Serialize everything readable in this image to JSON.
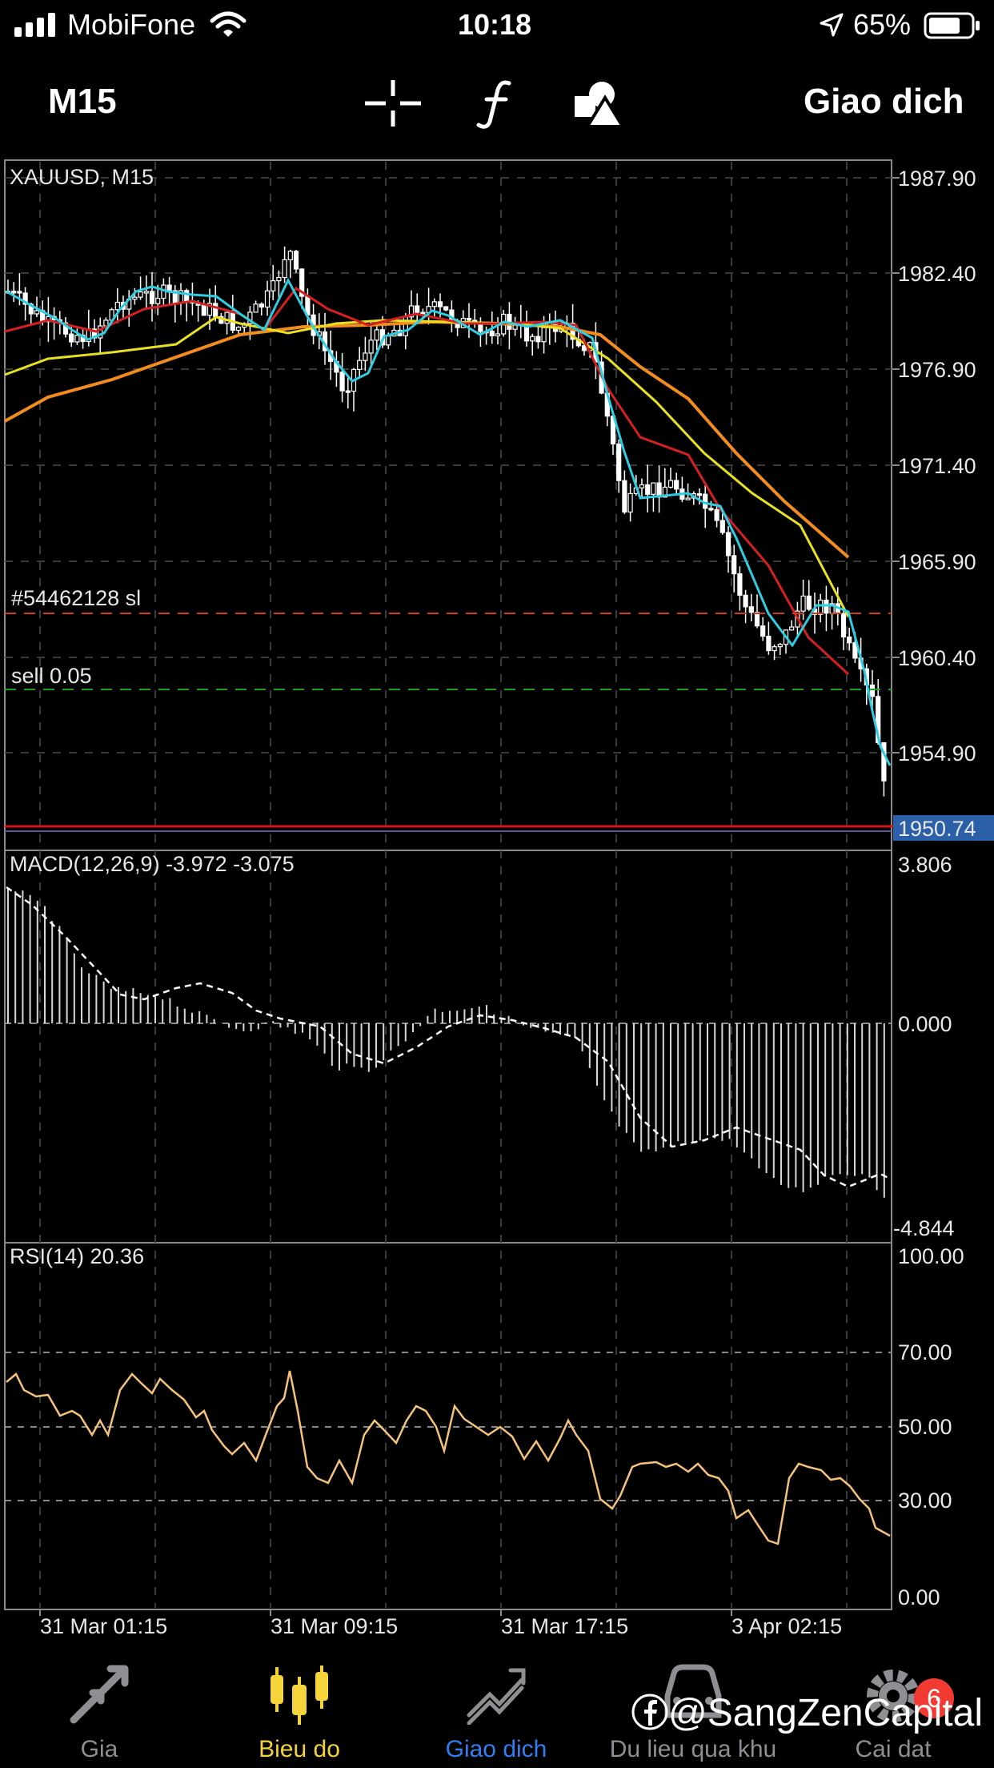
{
  "status_bar": {
    "carrier": "MobiFone",
    "time": "10:18",
    "battery": "65%"
  },
  "toolbar": {
    "timeframe": "M15",
    "trade_label": "Giao dich",
    "icons": [
      "crosshair-icon",
      "function-icon",
      "objects-icon"
    ]
  },
  "main_chart": {
    "symbol_label": "XAUUSD, M15",
    "price_ticks": [
      "1987.90",
      "1982.40",
      "1976.90",
      "1971.40",
      "1965.90",
      "1960.40",
      "1954.90"
    ],
    "current_price": "1950.74",
    "sl_label": "#54462128 sl",
    "sell_label": "sell 0.05",
    "colors": {
      "sl_line": "#d03a1a",
      "sell_line": "#18a020",
      "price_box": "#2b5fa8"
    }
  },
  "macd": {
    "label": "MACD(12,26,9) -3.972 -3.075",
    "ticks": [
      "3.806",
      "0.000",
      "-4.844"
    ]
  },
  "rsi": {
    "label": "RSI(14) 20.36",
    "ticks": [
      "100.00",
      "70.00",
      "50.00",
      "30.00",
      "0.00"
    ],
    "line_color": "#f5c27a"
  },
  "time_axis": [
    "31 Mar 01:15",
    "31 Mar 09:15",
    "31 Mar 17:15",
    "3 Apr 02:15"
  ],
  "tabs": [
    {
      "label": "Gia",
      "icon": "quotes-icon",
      "color": "#8e8e93"
    },
    {
      "label": "Bieu do",
      "icon": "chart-icon",
      "color": "#f5d33a"
    },
    {
      "label": "Giao dich",
      "icon": "trade-icon",
      "color": "#2f7ff0"
    },
    {
      "label": "Du lieu qua khu",
      "icon": "history-icon",
      "color": "#8e8e93"
    },
    {
      "label": "Cai dat",
      "icon": "gear-icon",
      "color": "#8e8e93"
    }
  ],
  "settings_badge": "6",
  "watermark": "@SangZenCapital"
}
